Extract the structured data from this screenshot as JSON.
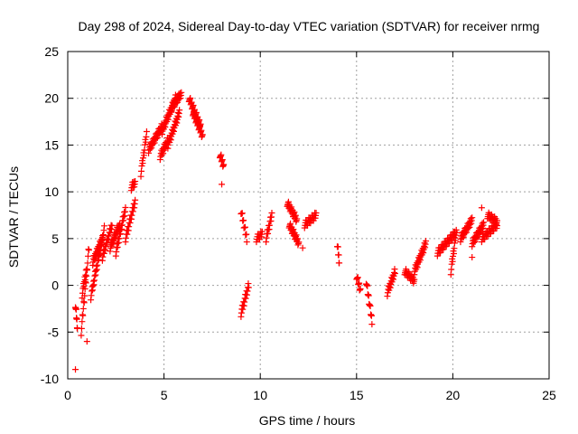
{
  "chart_data": {
    "type": "scatter",
    "title": "Day 298 of 2024, Sidereal Day-to-day VTEC variation (SDTVAR) for receiver nrmg",
    "xlabel": "GPS time / hours",
    "ylabel": "SDTVAR / TECUs",
    "xlim": [
      0,
      25
    ],
    "ylim": [
      -10,
      25
    ],
    "xticks": [
      "0",
      "5",
      "10",
      "15",
      "20",
      "25"
    ],
    "yticks": [
      "-10",
      "-5",
      "0",
      "5",
      "10",
      "15",
      "20",
      "25"
    ],
    "grid": true,
    "marker": "+",
    "color": "#ff0000",
    "segments": [
      {
        "x0": 0.4,
        "x1": 0.5,
        "y0": -2.0,
        "y1": -4.5
      },
      {
        "x0": 0.7,
        "x1": 1.1,
        "y0": -5.0,
        "y1": 4.0
      },
      {
        "x0": 0.75,
        "x1": 0.95,
        "y0": -1.0,
        "y1": 1.5
      },
      {
        "x0": 1.2,
        "x1": 1.9,
        "y0": -1.2,
        "y1": 6.0
      },
      {
        "x0": 1.3,
        "x1": 1.8,
        "y0": 2.5,
        "y1": 5.0
      },
      {
        "x0": 1.8,
        "x1": 2.3,
        "y0": 3.0,
        "y1": 6.5
      },
      {
        "x0": 2.2,
        "x1": 2.7,
        "y0": 4.0,
        "y1": 6.5
      },
      {
        "x0": 2.5,
        "x1": 3.0,
        "y0": 3.5,
        "y1": 8.2
      },
      {
        "x0": 3.0,
        "x1": 3.5,
        "y0": 5.0,
        "y1": 9.0
      },
      {
        "x0": 3.3,
        "x1": 3.5,
        "y0": 10.5,
        "y1": 11.0
      },
      {
        "x0": 3.8,
        "x1": 4.1,
        "y0": 12.0,
        "y1": 16.2
      },
      {
        "x0": 4.2,
        "x1": 4.9,
        "y0": 14.5,
        "y1": 17.0
      },
      {
        "x0": 4.8,
        "x1": 5.2,
        "y0": 13.8,
        "y1": 15.5
      },
      {
        "x0": 4.9,
        "x1": 5.6,
        "y0": 16.5,
        "y1": 20.0
      },
      {
        "x0": 5.2,
        "x1": 5.8,
        "y0": 15.0,
        "y1": 18.5
      },
      {
        "x0": 5.4,
        "x1": 5.9,
        "y0": 19.0,
        "y1": 20.5
      },
      {
        "x0": 6.3,
        "x1": 6.9,
        "y0": 20.0,
        "y1": 17.0
      },
      {
        "x0": 6.5,
        "x1": 7.0,
        "y0": 18.5,
        "y1": 16.0
      },
      {
        "x0": 7.9,
        "x1": 8.1,
        "y0": 14.0,
        "y1": 12.8
      },
      {
        "x0": 9.0,
        "x1": 9.3,
        "y0": 8.0,
        "y1": 5.0
      },
      {
        "x0": 9.0,
        "x1": 9.4,
        "y0": -3.0,
        "y1": 0.0
      },
      {
        "x0": 9.8,
        "x1": 10.1,
        "y0": 5.0,
        "y1": 5.5
      },
      {
        "x0": 10.3,
        "x1": 10.6,
        "y0": 5.0,
        "y1": 7.5
      },
      {
        "x0": 11.4,
        "x1": 11.9,
        "y0": 8.8,
        "y1": 7.0
      },
      {
        "x0": 11.5,
        "x1": 12.0,
        "y0": 6.5,
        "y1": 4.5
      },
      {
        "x0": 12.3,
        "x1": 12.9,
        "y0": 6.5,
        "y1": 7.5
      },
      {
        "x0": 14.0,
        "x1": 14.1,
        "y0": 4.5,
        "y1": 2.5
      },
      {
        "x0": 15.0,
        "x1": 15.2,
        "y0": 1.0,
        "y1": -0.5
      },
      {
        "x0": 15.5,
        "x1": 15.8,
        "y0": 0.5,
        "y1": -3.8
      },
      {
        "x0": 16.6,
        "x1": 17.0,
        "y0": -0.8,
        "y1": 1.5
      },
      {
        "x0": 17.5,
        "x1": 18.0,
        "y0": 1.5,
        "y1": 0.5
      },
      {
        "x0": 18.0,
        "x1": 18.6,
        "y0": 1.5,
        "y1": 4.5
      },
      {
        "x0": 19.2,
        "x1": 20.1,
        "y0": 3.5,
        "y1": 5.5
      },
      {
        "x0": 19.9,
        "x1": 20.2,
        "y0": 1.5,
        "y1": 6.0
      },
      {
        "x0": 20.4,
        "x1": 21.0,
        "y0": 5.0,
        "y1": 7.0
      },
      {
        "x0": 21.0,
        "x1": 21.6,
        "y0": 4.5,
        "y1": 6.5
      },
      {
        "x0": 21.5,
        "x1": 22.3,
        "y0": 5.0,
        "y1": 6.5
      },
      {
        "x0": 21.8,
        "x1": 22.3,
        "y0": 7.5,
        "y1": 6.8
      }
    ],
    "isolated_points": [
      {
        "x": 0.4,
        "y": -9.0
      },
      {
        "x": 1.0,
        "y": -6.0
      },
      {
        "x": 8.0,
        "y": 10.8
      },
      {
        "x": 12.2,
        "y": 4.0
      },
      {
        "x": 21.0,
        "y": 3.0
      },
      {
        "x": 21.5,
        "y": 8.3
      }
    ]
  }
}
